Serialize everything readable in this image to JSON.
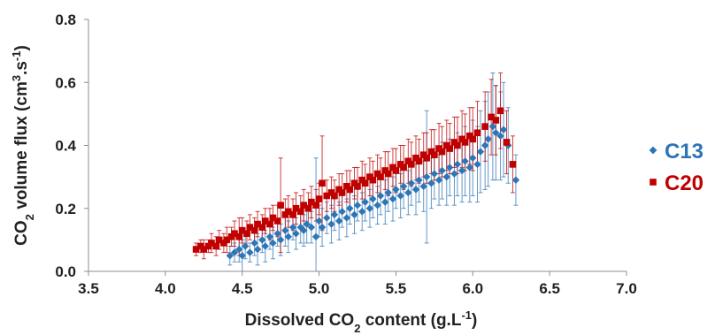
{
  "chart_data": {
    "type": "scatter",
    "xlabel_parts": [
      "Dissolved CO",
      "2",
      " content (g.L",
      "-1",
      ")"
    ],
    "ylabel_parts": [
      "CO",
      "2",
      " volume flux (cm",
      "3",
      ".s",
      "-1",
      ")"
    ],
    "xlim": [
      3.5,
      7.0
    ],
    "ylim": [
      0.0,
      0.8
    ],
    "x_ticks": [
      "3.5",
      "4.0",
      "4.5",
      "5.0",
      "5.5",
      "6.0",
      "6.5",
      "7.0"
    ],
    "y_ticks": [
      "0.0",
      "0.2",
      "0.4",
      "0.6",
      "0.8"
    ],
    "grid": false,
    "legend_position": "right",
    "series": [
      {
        "name": "C13",
        "color": "#2E75B6",
        "marker": "diamond",
        "points": [
          [
            4.42,
            0.05,
            0.03
          ],
          [
            4.45,
            0.06,
            0.03
          ],
          [
            4.48,
            0.07,
            0.04
          ],
          [
            4.5,
            0.05,
            0.05
          ],
          [
            4.52,
            0.08,
            0.04
          ],
          [
            4.55,
            0.06,
            0.03
          ],
          [
            4.58,
            0.09,
            0.04
          ],
          [
            4.6,
            0.07,
            0.05
          ],
          [
            4.63,
            0.1,
            0.04
          ],
          [
            4.65,
            0.08,
            0.05
          ],
          [
            4.68,
            0.11,
            0.04
          ],
          [
            4.7,
            0.09,
            0.05
          ],
          [
            4.73,
            0.12,
            0.04
          ],
          [
            4.75,
            0.1,
            0.05
          ],
          [
            4.78,
            0.13,
            0.05
          ],
          [
            4.8,
            0.11,
            0.05
          ],
          [
            4.83,
            0.14,
            0.04
          ],
          [
            4.85,
            0.12,
            0.05
          ],
          [
            4.88,
            0.14,
            0.05
          ],
          [
            4.9,
            0.13,
            0.05
          ],
          [
            4.92,
            0.15,
            0.06
          ],
          [
            4.95,
            0.14,
            0.05
          ],
          [
            4.98,
            0.11,
            0.25
          ],
          [
            5.0,
            0.16,
            0.05
          ],
          [
            5.02,
            0.14,
            0.06
          ],
          [
            5.05,
            0.17,
            0.05
          ],
          [
            5.08,
            0.15,
            0.06
          ],
          [
            5.1,
            0.18,
            0.05
          ],
          [
            5.13,
            0.16,
            0.06
          ],
          [
            5.15,
            0.19,
            0.05
          ],
          [
            5.18,
            0.17,
            0.06
          ],
          [
            5.2,
            0.2,
            0.05
          ],
          [
            5.23,
            0.18,
            0.06
          ],
          [
            5.25,
            0.21,
            0.05
          ],
          [
            5.28,
            0.19,
            0.06
          ],
          [
            5.3,
            0.22,
            0.06
          ],
          [
            5.33,
            0.2,
            0.06
          ],
          [
            5.35,
            0.23,
            0.06
          ],
          [
            5.38,
            0.21,
            0.06
          ],
          [
            5.4,
            0.24,
            0.06
          ],
          [
            5.43,
            0.22,
            0.07
          ],
          [
            5.45,
            0.25,
            0.06
          ],
          [
            5.48,
            0.23,
            0.07
          ],
          [
            5.5,
            0.26,
            0.06
          ],
          [
            5.53,
            0.24,
            0.07
          ],
          [
            5.55,
            0.27,
            0.07
          ],
          [
            5.58,
            0.25,
            0.07
          ],
          [
            5.6,
            0.28,
            0.07
          ],
          [
            5.63,
            0.26,
            0.08
          ],
          [
            5.65,
            0.29,
            0.07
          ],
          [
            5.68,
            0.27,
            0.08
          ],
          [
            5.7,
            0.3,
            0.21
          ],
          [
            5.73,
            0.28,
            0.08
          ],
          [
            5.75,
            0.31,
            0.08
          ],
          [
            5.78,
            0.29,
            0.08
          ],
          [
            5.8,
            0.32,
            0.09
          ],
          [
            5.83,
            0.3,
            0.09
          ],
          [
            5.85,
            0.33,
            0.09
          ],
          [
            5.88,
            0.31,
            0.1
          ],
          [
            5.9,
            0.34,
            0.1
          ],
          [
            5.93,
            0.32,
            0.1
          ],
          [
            5.95,
            0.35,
            0.11
          ],
          [
            5.98,
            0.33,
            0.11
          ],
          [
            6.0,
            0.36,
            0.12
          ],
          [
            6.03,
            0.34,
            0.12
          ],
          [
            6.05,
            0.38,
            0.13
          ],
          [
            6.08,
            0.4,
            0.14
          ],
          [
            6.1,
            0.42,
            0.15
          ],
          [
            6.13,
            0.46,
            0.17
          ],
          [
            6.15,
            0.44,
            0.15
          ],
          [
            6.18,
            0.43,
            0.14
          ],
          [
            6.2,
            0.45,
            0.15
          ],
          [
            6.23,
            0.4,
            0.12
          ],
          [
            6.28,
            0.29,
            0.08
          ]
        ]
      },
      {
        "name": "C20",
        "color": "#C00000",
        "marker": "square",
        "points": [
          [
            4.2,
            0.07,
            0.02
          ],
          [
            4.23,
            0.08,
            0.02
          ],
          [
            4.25,
            0.07,
            0.03
          ],
          [
            4.28,
            0.08,
            0.02
          ],
          [
            4.3,
            0.09,
            0.03
          ],
          [
            4.33,
            0.08,
            0.03
          ],
          [
            4.35,
            0.1,
            0.03
          ],
          [
            4.38,
            0.09,
            0.03
          ],
          [
            4.4,
            0.1,
            0.04
          ],
          [
            4.43,
            0.11,
            0.03
          ],
          [
            4.45,
            0.12,
            0.04
          ],
          [
            4.48,
            0.11,
            0.06
          ],
          [
            4.5,
            0.13,
            0.04
          ],
          [
            4.53,
            0.12,
            0.04
          ],
          [
            4.55,
            0.14,
            0.04
          ],
          [
            4.58,
            0.13,
            0.04
          ],
          [
            4.6,
            0.15,
            0.04
          ],
          [
            4.63,
            0.14,
            0.04
          ],
          [
            4.65,
            0.16,
            0.04
          ],
          [
            4.68,
            0.15,
            0.05
          ],
          [
            4.7,
            0.17,
            0.04
          ],
          [
            4.73,
            0.16,
            0.05
          ],
          [
            4.75,
            0.21,
            0.15
          ],
          [
            4.78,
            0.18,
            0.05
          ],
          [
            4.8,
            0.19,
            0.05
          ],
          [
            4.83,
            0.18,
            0.05
          ],
          [
            4.85,
            0.2,
            0.05
          ],
          [
            4.88,
            0.19,
            0.05
          ],
          [
            4.9,
            0.21,
            0.05
          ],
          [
            4.93,
            0.2,
            0.05
          ],
          [
            4.95,
            0.22,
            0.05
          ],
          [
            4.98,
            0.21,
            0.05
          ],
          [
            5.0,
            0.23,
            0.05
          ],
          [
            5.02,
            0.28,
            0.15
          ],
          [
            5.05,
            0.24,
            0.05
          ],
          [
            5.08,
            0.25,
            0.05
          ],
          [
            5.1,
            0.24,
            0.05
          ],
          [
            5.13,
            0.26,
            0.05
          ],
          [
            5.15,
            0.25,
            0.06
          ],
          [
            5.18,
            0.27,
            0.05
          ],
          [
            5.2,
            0.26,
            0.06
          ],
          [
            5.23,
            0.28,
            0.05
          ],
          [
            5.25,
            0.27,
            0.06
          ],
          [
            5.28,
            0.29,
            0.06
          ],
          [
            5.3,
            0.28,
            0.06
          ],
          [
            5.33,
            0.3,
            0.06
          ],
          [
            5.35,
            0.29,
            0.06
          ],
          [
            5.38,
            0.31,
            0.06
          ],
          [
            5.4,
            0.3,
            0.06
          ],
          [
            5.43,
            0.32,
            0.06
          ],
          [
            5.45,
            0.31,
            0.07
          ],
          [
            5.48,
            0.33,
            0.06
          ],
          [
            5.5,
            0.32,
            0.07
          ],
          [
            5.53,
            0.34,
            0.06
          ],
          [
            5.55,
            0.33,
            0.07
          ],
          [
            5.58,
            0.35,
            0.07
          ],
          [
            5.6,
            0.34,
            0.07
          ],
          [
            5.63,
            0.36,
            0.07
          ],
          [
            5.65,
            0.35,
            0.07
          ],
          [
            5.68,
            0.37,
            0.07
          ],
          [
            5.7,
            0.36,
            0.08
          ],
          [
            5.73,
            0.38,
            0.07
          ],
          [
            5.75,
            0.37,
            0.08
          ],
          [
            5.78,
            0.39,
            0.08
          ],
          [
            5.8,
            0.38,
            0.08
          ],
          [
            5.83,
            0.4,
            0.08
          ],
          [
            5.85,
            0.39,
            0.08
          ],
          [
            5.88,
            0.41,
            0.08
          ],
          [
            5.9,
            0.4,
            0.09
          ],
          [
            5.93,
            0.42,
            0.09
          ],
          [
            5.95,
            0.41,
            0.09
          ],
          [
            5.98,
            0.43,
            0.09
          ],
          [
            6.0,
            0.42,
            0.1
          ],
          [
            6.03,
            0.44,
            0.1
          ],
          [
            6.08,
            0.46,
            0.11
          ],
          [
            6.12,
            0.49,
            0.12
          ],
          [
            6.15,
            0.48,
            0.11
          ],
          [
            6.18,
            0.51,
            0.12
          ],
          [
            6.22,
            0.41,
            0.1
          ],
          [
            6.26,
            0.34,
            0.09
          ]
        ]
      }
    ]
  }
}
